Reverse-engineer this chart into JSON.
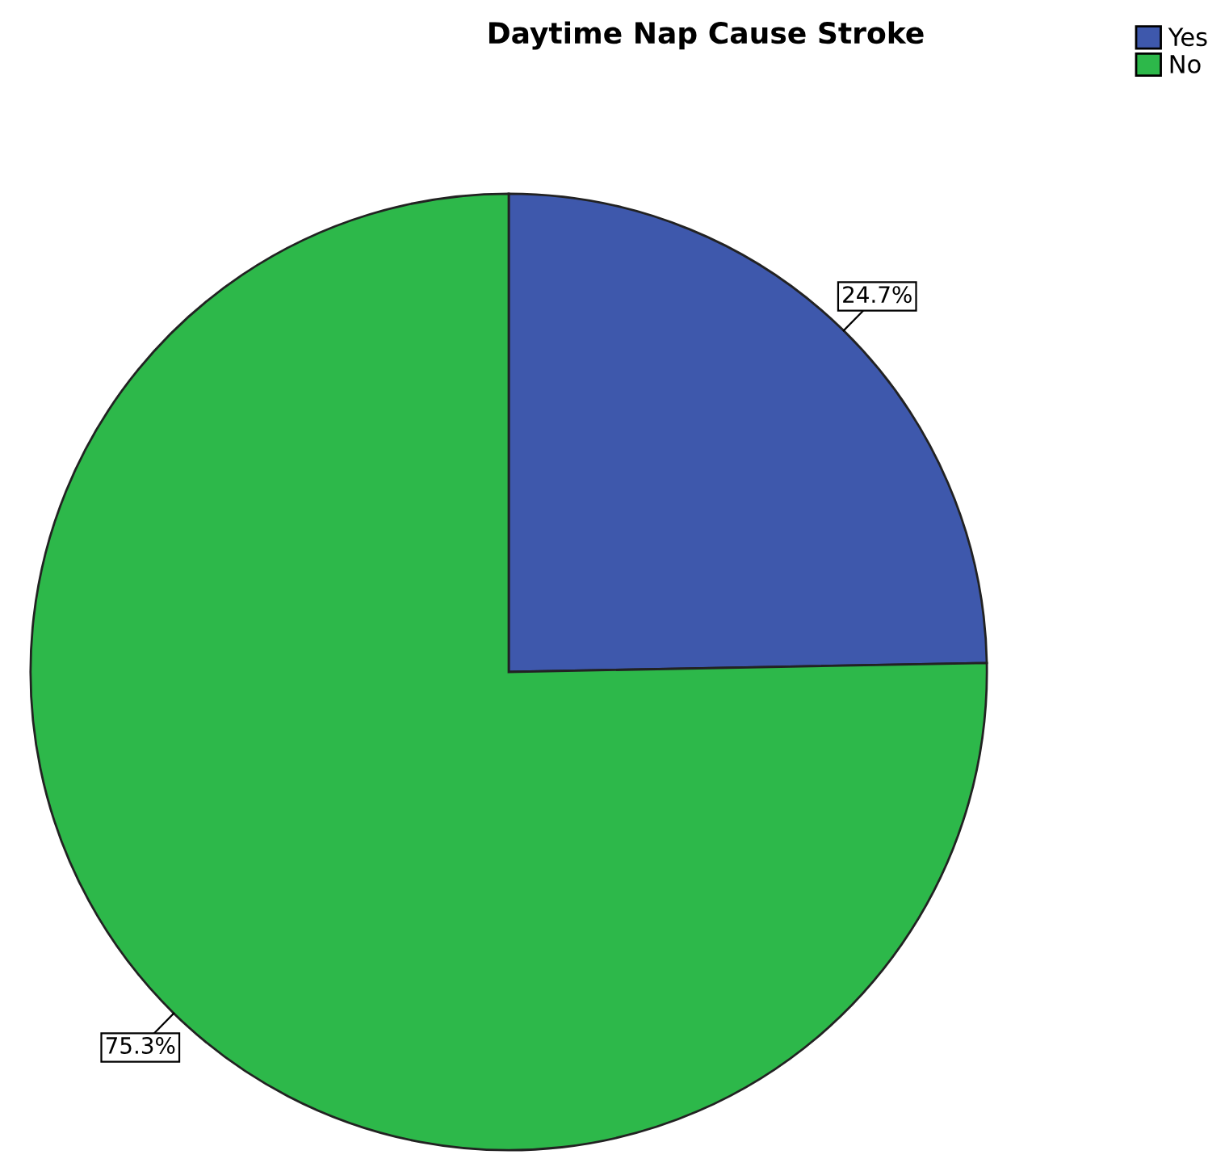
{
  "chart_data": {
    "type": "pie",
    "title": "Daytime Nap Cause Stroke",
    "categories": [
      "Yes",
      "No"
    ],
    "values": [
      24.7,
      75.3
    ],
    "colors": [
      "#3e58ac",
      "#2db84a"
    ],
    "value_labels": [
      "24.7%",
      "75.3%"
    ],
    "legend": "top right"
  }
}
